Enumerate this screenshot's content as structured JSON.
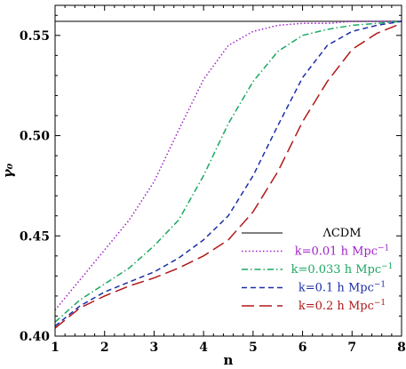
{
  "chart_data": {
    "type": "line",
    "title": "",
    "xlabel": "n",
    "ylabel": "γ₀",
    "xlim": [
      1,
      8
    ],
    "ylim": [
      0.4,
      0.565
    ],
    "xticks": [
      1,
      2,
      3,
      4,
      5,
      6,
      7,
      8
    ],
    "yticks": [
      0.4,
      0.45,
      0.5,
      0.55
    ],
    "ytick_labels": [
      "0.40",
      "0.45",
      "0.50",
      "0.55"
    ],
    "grid": false,
    "legend_position": "bottom-right",
    "series": [
      {
        "name": "ΛCDM",
        "color": "#555555",
        "style": "solid",
        "x": [
          1,
          8
        ],
        "y": [
          0.557,
          0.557
        ]
      },
      {
        "name": "k=0.01 h Mpc",
        "name_sup": "−1",
        "color": "#a020c8",
        "style": "dotted",
        "x": [
          1.0,
          1.5,
          2.0,
          2.5,
          3.0,
          3.5,
          4.0,
          4.5,
          5.0,
          5.5,
          6.0,
          6.5,
          7.0,
          7.5,
          8.0
        ],
        "y": [
          0.413,
          0.428,
          0.443,
          0.458,
          0.477,
          0.503,
          0.528,
          0.545,
          0.552,
          0.555,
          0.556,
          0.556,
          0.557,
          0.557,
          0.557
        ]
      },
      {
        "name": "k=0.033 h Mpc",
        "name_sup": "−1",
        "color": "#1aa860",
        "style": "dashdot",
        "x": [
          1.0,
          1.5,
          2.0,
          2.5,
          3.0,
          3.5,
          4.0,
          4.5,
          5.0,
          5.5,
          6.0,
          6.5,
          7.0,
          7.5,
          8.0
        ],
        "y": [
          0.407,
          0.418,
          0.426,
          0.434,
          0.445,
          0.458,
          0.48,
          0.506,
          0.527,
          0.542,
          0.55,
          0.553,
          0.555,
          0.556,
          0.557
        ]
      },
      {
        "name": "k=0.1 h Mpc",
        "name_sup": "−1",
        "color": "#1a2ea8",
        "style": "dashed",
        "x": [
          1.0,
          1.5,
          2.0,
          2.5,
          3.0,
          3.5,
          4.0,
          4.5,
          5.0,
          5.5,
          6.0,
          6.5,
          7.0,
          7.5,
          8.0
        ],
        "y": [
          0.405,
          0.415,
          0.422,
          0.427,
          0.432,
          0.439,
          0.448,
          0.46,
          0.48,
          0.505,
          0.529,
          0.545,
          0.552,
          0.555,
          0.557
        ]
      },
      {
        "name": "k=0.2 h Mpc",
        "name_sup": "−1",
        "color": "#b01818",
        "style": "longdash",
        "x": [
          1.0,
          1.5,
          2.0,
          2.5,
          3.0,
          3.5,
          4.0,
          4.5,
          5.0,
          5.5,
          6.0,
          6.5,
          7.0,
          7.5,
          8.0
        ],
        "y": [
          0.404,
          0.414,
          0.42,
          0.425,
          0.429,
          0.434,
          0.44,
          0.448,
          0.462,
          0.482,
          0.507,
          0.527,
          0.543,
          0.551,
          0.556
        ]
      }
    ]
  }
}
